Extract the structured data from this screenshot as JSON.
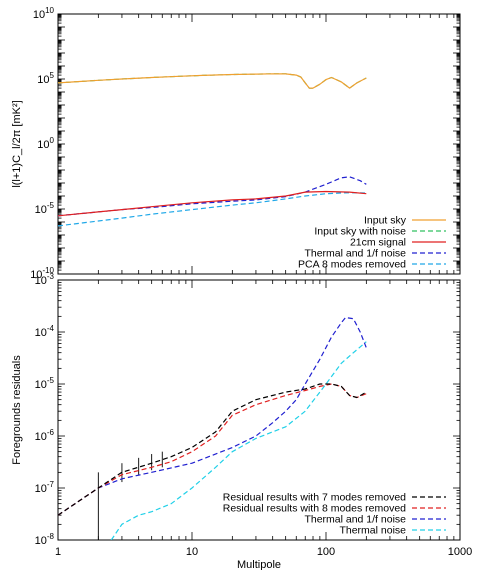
{
  "chart_data": [
    {
      "type": "line",
      "panel": "top",
      "xlabel": "",
      "ylabel": "l(l+1)C_l/2π [mK²]",
      "xscale": "log",
      "yscale": "log",
      "xlim": [
        1,
        1000
      ],
      "ylim": [
        1e-10,
        10000000000.0
      ],
      "ytick_labels": [
        {
          "value": 10000000000.0,
          "base": "10",
          "exp": "10"
        },
        {
          "value": 100000.0,
          "base": "10",
          "exp": "5"
        },
        {
          "value": 1,
          "base": "10",
          "exp": "0"
        },
        {
          "value": 1e-05,
          "base": "10",
          "exp": "-5"
        },
        {
          "value": 1e-10,
          "base": "10",
          "exp": "-10"
        }
      ],
      "legend_position": "bottom-right",
      "series": [
        {
          "name": "Input sky",
          "color": "#f0a030",
          "dash": "solid",
          "x": [
            1,
            1.5,
            2,
            3,
            5,
            8,
            12,
            20,
            30,
            40,
            50,
            60,
            65,
            70,
            75,
            80,
            90,
            100,
            110,
            130,
            150,
            170,
            200
          ],
          "y": [
            50000.0,
            65000.0,
            80000.0,
            100000.0,
            130000.0,
            160000.0,
            190000.0,
            220000.0,
            240000.0,
            250000.0,
            245000.0,
            200000.0,
            140000.0,
            50000.0,
            20000.0,
            20000.0,
            40000.0,
            90000.0,
            130000.0,
            60000.0,
            20000.0,
            50000.0,
            120000.0
          ]
        },
        {
          "name": "Input sky with noise",
          "color": "#30c060",
          "dash": "dashed",
          "x": [
            1,
            1.5,
            2,
            3,
            5,
            8,
            12,
            20,
            30,
            40,
            50,
            60,
            65,
            70,
            75,
            80,
            90,
            100,
            110,
            130,
            150,
            170,
            200
          ],
          "y": [
            50000.0,
            65000.0,
            80000.0,
            100000.0,
            130000.0,
            160000.0,
            190000.0,
            220000.0,
            240000.0,
            250000.0,
            245000.0,
            200000.0,
            140000.0,
            50000.0,
            20000.0,
            20000.0,
            40000.0,
            90000.0,
            130000.0,
            60000.0,
            20000.0,
            50000.0,
            120000.0
          ]
        },
        {
          "name": "21cm signal",
          "color": "#e02020",
          "dash": "solid",
          "x": [
            1,
            2,
            3,
            5,
            10,
            20,
            30,
            50,
            70,
            100,
            150,
            200
          ],
          "y": [
            3e-06,
            6e-06,
            9e-06,
            1.5e-05,
            3e-05,
            5e-05,
            6e-05,
            0.0001,
            0.0002,
            0.00022,
            0.0002,
            0.00015
          ]
        },
        {
          "name": "Thermal and 1/f noise",
          "color": "#2020d0",
          "dash": "dashed",
          "x": [
            1,
            2,
            3,
            5,
            10,
            20,
            30,
            50,
            70,
            100,
            130,
            150,
            180,
            200
          ],
          "y": [
            3e-06,
            6e-06,
            9e-06,
            1.3e-05,
            2.5e-05,
            4e-05,
            5e-05,
            9e-05,
            0.0002,
            0.0008,
            0.0025,
            0.003,
            0.0015,
            0.0008
          ]
        },
        {
          "name": "PCA 8 modes removed",
          "color": "#20a8e8",
          "dash": "dashed",
          "x": [
            1,
            2,
            3,
            5,
            10,
            20,
            30,
            50,
            70,
            100,
            150,
            200
          ],
          "y": [
            5e-07,
            1.2e-06,
            2e-06,
            4e-06,
            9e-06,
            2e-05,
            3e-05,
            6e-05,
            0.0001,
            0.00015,
            0.00018,
            0.00017
          ]
        }
      ]
    },
    {
      "type": "line",
      "panel": "bottom",
      "xlabel": "Multipole",
      "ylabel": "Foregrounds residuals",
      "xscale": "log",
      "yscale": "log",
      "xlim": [
        1,
        1000
      ],
      "ylim": [
        1e-08,
        0.001
      ],
      "xtick_labels": [
        {
          "value": 1,
          "label": "1"
        },
        {
          "value": 10,
          "label": "10"
        },
        {
          "value": 100,
          "label": "100"
        },
        {
          "value": 1000,
          "label": "1000"
        }
      ],
      "ytick_labels": [
        {
          "value": 0.001,
          "base": "10",
          "exp": "-3"
        },
        {
          "value": 0.0001,
          "base": "10",
          "exp": "-4"
        },
        {
          "value": 1e-05,
          "base": "10",
          "exp": "-5"
        },
        {
          "value": 1e-06,
          "base": "10",
          "exp": "-6"
        },
        {
          "value": 1e-07,
          "base": "10",
          "exp": "-7"
        },
        {
          "value": 1e-08,
          "base": "10",
          "exp": "-8"
        }
      ],
      "legend_position": "bottom-right",
      "error_bars": [
        {
          "x": 2,
          "low": 1e-08,
          "high": 2e-07
        },
        {
          "x": 3,
          "low": 1.3e-07,
          "high": 3e-07
        },
        {
          "x": 4,
          "low": 1.8e-07,
          "high": 3.8e-07
        },
        {
          "x": 5,
          "low": 2.2e-07,
          "high": 4.5e-07
        },
        {
          "x": 6,
          "low": 2.5e-07,
          "high": 5e-07
        }
      ],
      "series": [
        {
          "name": "Residual results with 7 modes removed",
          "color": "#000000",
          "dash": "dashed",
          "x": [
            1,
            2,
            3,
            5,
            7,
            10,
            15,
            20,
            30,
            50,
            70,
            90,
            110,
            130,
            150,
            170,
            200
          ],
          "y": [
            3e-08,
            1e-07,
            2e-07,
            3e-07,
            4e-07,
            6e-07,
            1.2e-06,
            3e-06,
            5e-06,
            7e-06,
            8e-06,
            1e-05,
            1e-05,
            9e-06,
            6e-06,
            5.5e-06,
            7e-06
          ]
        },
        {
          "name": "Residual results with 8 modes removed",
          "color": "#e02020",
          "dash": "dashed",
          "x": [
            1,
            2,
            3,
            5,
            7,
            10,
            15,
            20,
            30,
            50,
            70,
            90,
            110,
            130,
            150,
            170,
            200
          ],
          "y": [
            3e-08,
            1e-07,
            1.8e-07,
            2.5e-07,
            3.2e-07,
            5e-07,
            1e-06,
            2.5e-06,
            4e-06,
            6e-06,
            7.5e-06,
            9e-06,
            1e-05,
            9e-06,
            6e-06,
            5.5e-06,
            6.5e-06
          ]
        },
        {
          "name": "Thermal and 1/f noise",
          "color": "#2020d0",
          "dash": "dashed",
          "x": [
            1,
            2,
            3,
            5,
            10,
            20,
            30,
            40,
            50,
            60,
            70,
            90,
            110,
            130,
            140,
            160,
            180,
            200
          ],
          "y": [
            3e-08,
            1e-07,
            1.5e-07,
            2e-07,
            3e-07,
            6e-07,
            1e-06,
            1.8e-06,
            3e-06,
            5e-06,
            1e-05,
            3e-05,
            8e-05,
            0.00015,
            0.00019,
            0.00018,
            0.0001,
            5e-05
          ]
        },
        {
          "name": "Thermal noise",
          "color": "#20d0e8",
          "dash": "dashed",
          "x": [
            2.5,
            3,
            4,
            5,
            7,
            10,
            15,
            20,
            30,
            50,
            70,
            100,
            130,
            160,
            200
          ],
          "y": [
            1e-08,
            2e-08,
            3e-08,
            3.5e-08,
            5e-08,
            1e-07,
            2.5e-07,
            5e-07,
            9e-07,
            1.5e-06,
            3e-06,
            1e-05,
            2.5e-05,
            4e-05,
            6.5e-05
          ]
        }
      ]
    }
  ]
}
